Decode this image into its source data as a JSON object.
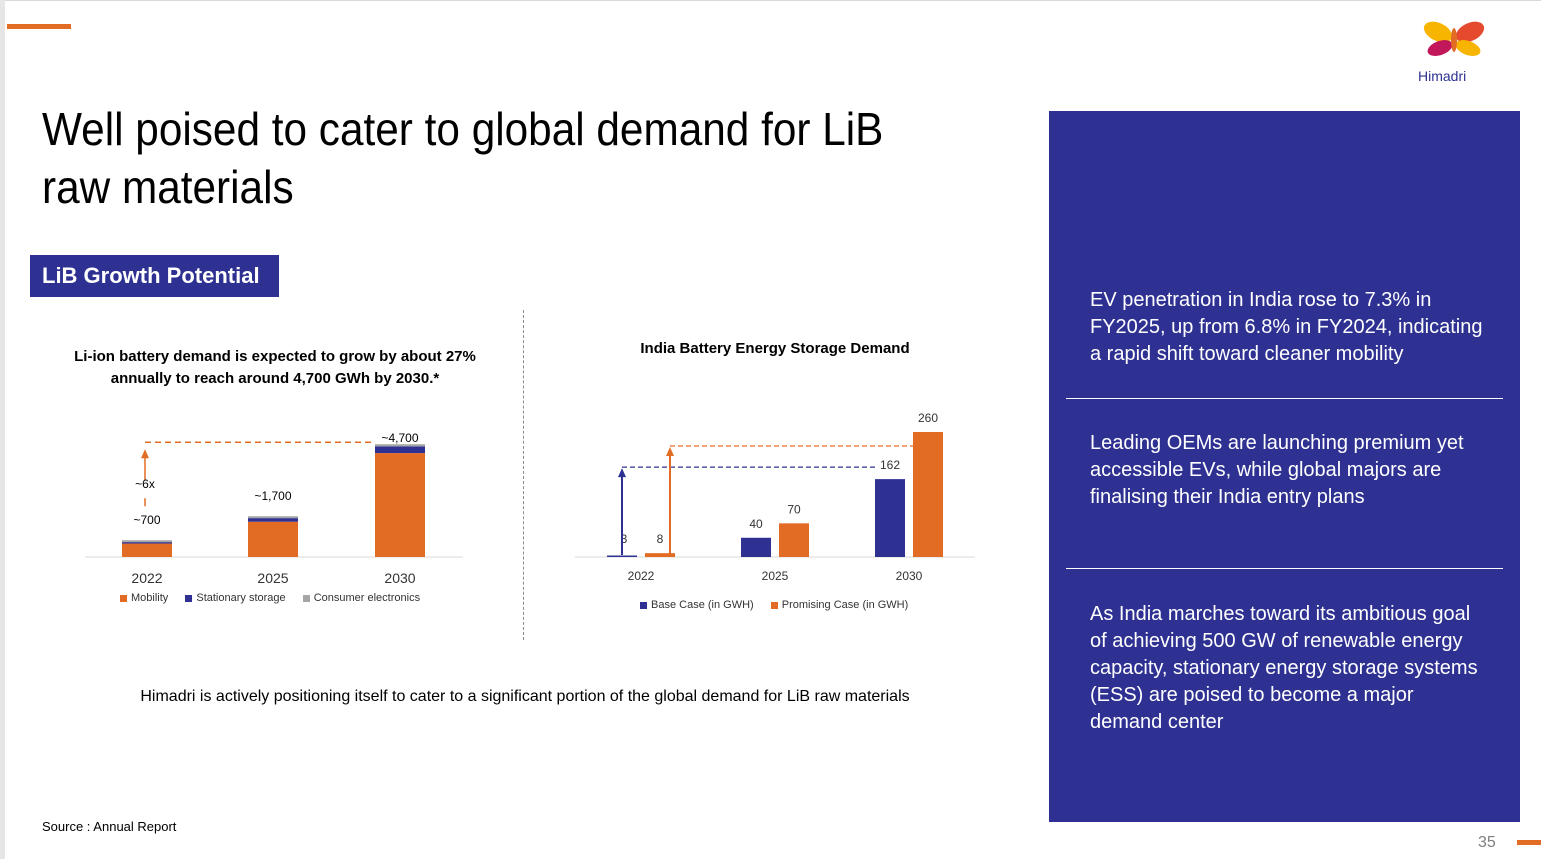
{
  "header": {
    "title": "Well poised to cater to global demand for LiB raw materials",
    "section_label": "LiB Growth Potential",
    "logo_text": "Himadri"
  },
  "colors": {
    "orange": "#e36c24",
    "navy": "#2e3192",
    "gray": "#a6a6a6"
  },
  "chart_data": [
    {
      "type": "bar",
      "stacked": true,
      "title": "Li-ion battery demand is expected to grow by about 27% annually to reach around 4,700 GWh by 2030.*",
      "categories": [
        "2022",
        "2025",
        "2030"
      ],
      "series": [
        {
          "name": "Mobility",
          "values": [
            560,
            1470,
            4330
          ]
        },
        {
          "name": "Stationary storage",
          "values": [
            60,
            150,
            280
          ]
        },
        {
          "name": "Consumer electronics",
          "values": [
            80,
            80,
            90
          ]
        }
      ],
      "data_labels": [
        "~700",
        "~1,700",
        "~4,700"
      ],
      "annotation": "~6x",
      "ylim": [
        0,
        5000
      ],
      "legend": "bottom"
    },
    {
      "type": "bar",
      "title": "India Battery Energy Storage Demand",
      "categories": [
        "2022",
        "2025",
        "2030"
      ],
      "series": [
        {
          "name": "Base Case (in GWH)",
          "values": [
            3,
            40,
            162
          ]
        },
        {
          "name": "Promising Case (in GWH)",
          "values": [
            8,
            70,
            260
          ]
        }
      ],
      "ylim": [
        0,
        280
      ],
      "legend": "bottom"
    }
  ],
  "panel": {
    "points": [
      "EV penetration in India rose to 7.3% in FY2025, up from 6.8% in FY2024, indicating a rapid shift toward cleaner mobility",
      "Leading OEMs are launching premium yet accessible EVs, while global majors are finalising their India entry plans",
      "As India marches toward its ambitious goal of achieving 500 GW of renewable energy capacity, stationary energy storage systems (ESS) are poised to become a major demand center"
    ]
  },
  "footer": {
    "caption": "Himadri is actively positioning itself to cater to a significant portion of the global demand for LiB raw materials",
    "source": "Source : Annual Report",
    "page_number": "35"
  }
}
